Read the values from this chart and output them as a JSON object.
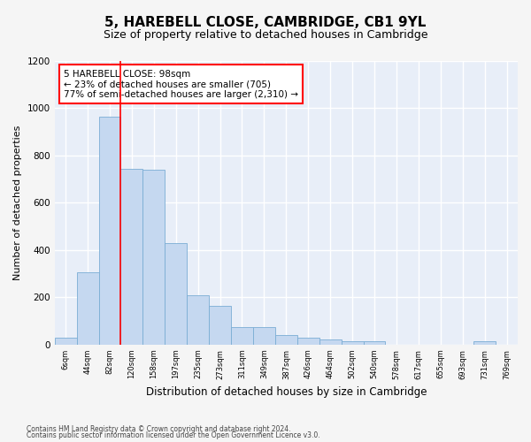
{
  "title": "5, HAREBELL CLOSE, CAMBRIDGE, CB1 9YL",
  "subtitle": "Size of property relative to detached houses in Cambridge",
  "xlabel": "Distribution of detached houses by size in Cambridge",
  "ylabel": "Number of detached properties",
  "annotation_line1": "5 HAREBELL CLOSE: 98sqm",
  "annotation_line2": "← 23% of detached houses are smaller (705)",
  "annotation_line3": "77% of semi-detached houses are larger (2,310) →",
  "footer_line1": "Contains HM Land Registry data © Crown copyright and database right 2024.",
  "footer_line2": "Contains public sector information licensed under the Open Government Licence v3.0.",
  "bin_labels": [
    "6sqm",
    "44sqm",
    "82sqm",
    "120sqm",
    "158sqm",
    "197sqm",
    "235sqm",
    "273sqm",
    "311sqm",
    "349sqm",
    "387sqm",
    "426sqm",
    "464sqm",
    "502sqm",
    "540sqm",
    "578sqm",
    "617sqm",
    "655sqm",
    "693sqm",
    "731sqm",
    "769sqm"
  ],
  "bar_heights": [
    30,
    305,
    965,
    745,
    740,
    430,
    210,
    165,
    75,
    75,
    40,
    30,
    20,
    15,
    15,
    0,
    0,
    0,
    0,
    15,
    0
  ],
  "bar_color": "#c5d8f0",
  "bar_edge_color": "#7aadd4",
  "property_line_x": 2.47,
  "ylim": [
    0,
    1200
  ],
  "yticks": [
    0,
    200,
    400,
    600,
    800,
    1000,
    1200
  ],
  "fig_facecolor": "#f5f5f5",
  "ax_facecolor": "#e8eef8",
  "grid_color": "#ffffff",
  "title_fontsize": 11,
  "subtitle_fontsize": 9,
  "xlabel_fontsize": 8.5,
  "ylabel_fontsize": 8,
  "tick_fontsize": 7.5,
  "annot_fontsize": 7.5
}
